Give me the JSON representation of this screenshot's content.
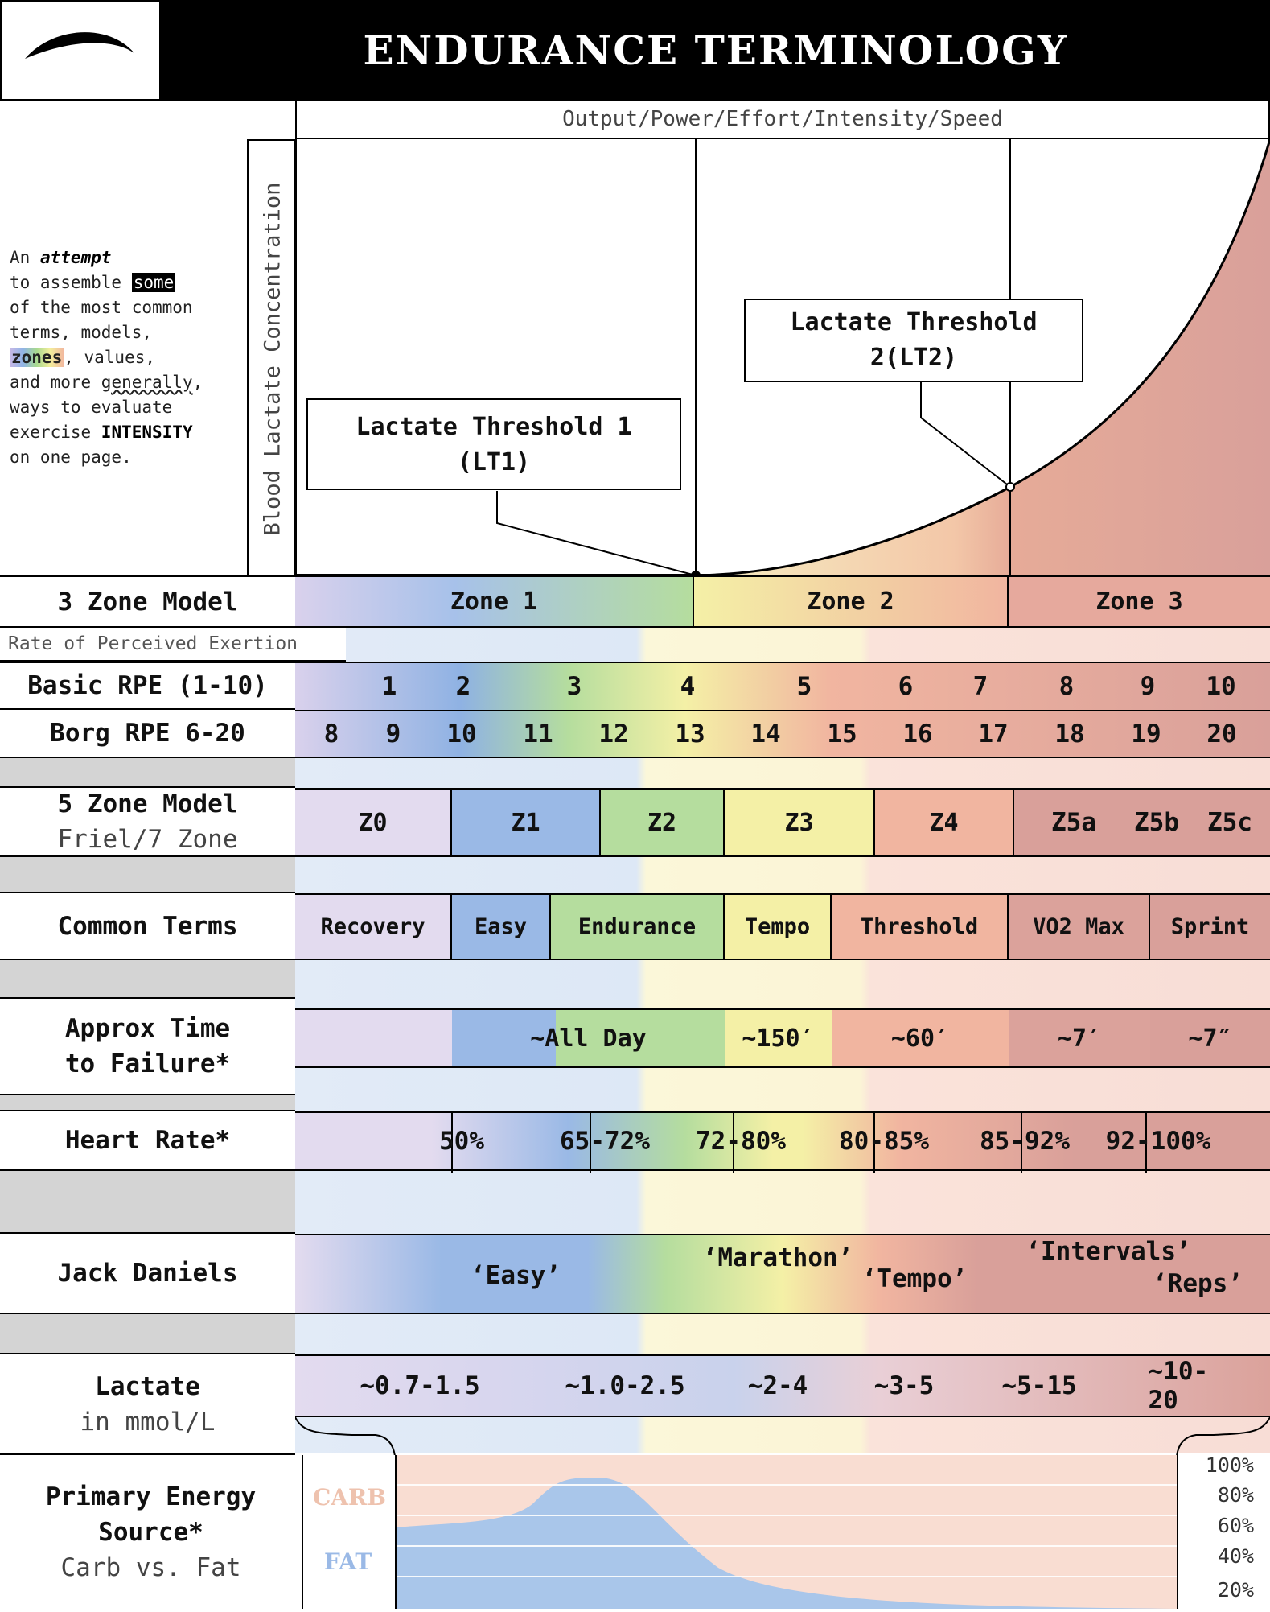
{
  "title": "ENDURANCE TERMINOLOGY",
  "top_axis": "Output/Power/Effort/Intensity/Speed",
  "side_axis": "Blood Lactate Concentration",
  "intro": {
    "l1a": "An ",
    "l1b": "attempt",
    "l2a": "to assemble ",
    "l2b": "some",
    "l3": "of the most common",
    "l4": "terms, models,",
    "l5a": "zones",
    "l5b": ", values,",
    "l6a": "and more ",
    "l6b": "generally",
    "l6c": ",",
    "l7": "ways to evaluate",
    "l8a": "exercise ",
    "l8b": "INTENSITY",
    "l9": "on one page."
  },
  "callouts": {
    "lt1_a": "Lactate Threshold 1",
    "lt1_b": "(LT1)",
    "lt2_a": "Lactate Threshold",
    "lt2_b": "2(LT2)"
  },
  "rows": {
    "three_zone": "3 Zone Model",
    "rpe_heading": "Rate of Perceived Exertion",
    "basic_rpe": "Basic RPE (1-10)",
    "borg": "Borg RPE 6-20",
    "five_zone_a": "5 Zone Model",
    "five_zone_b": "Friel/7 Zone",
    "common": "Common Terms",
    "ttf_a": "Approx Time",
    "ttf_b": "to Failure*",
    "hr": "Heart Rate*",
    "daniels": "Jack Daniels",
    "lactate_a": "Lactate",
    "lactate_b": "in mmol/L",
    "energy_a": "Primary Energy",
    "energy_b": "Source*",
    "energy_c": "Carb vs. Fat"
  },
  "three_zone": [
    "Zone 1",
    "Zone 2",
    "Zone 3"
  ],
  "basic_rpe": [
    "1",
    "2",
    "3",
    "4",
    "5",
    "6",
    "7",
    "8",
    "9",
    "10"
  ],
  "borg_rpe": [
    "8",
    "9",
    "10",
    "11",
    "12",
    "13",
    "14",
    "15",
    "16",
    "17",
    "18",
    "19",
    "20"
  ],
  "five_zone": [
    "Z0",
    "Z1",
    "Z2",
    "Z3",
    "Z4",
    "Z5a",
    "Z5b",
    "Z5c"
  ],
  "common_terms": [
    "Recovery",
    "Easy",
    "Endurance",
    "Tempo",
    "Threshold",
    "VO2 Max",
    "Sprint"
  ],
  "time_to_failure": [
    "~All Day",
    "~150′",
    "~60′",
    "~7′",
    "~7″"
  ],
  "heart_rate": [
    "50%",
    "65-72%",
    "72-80%",
    "80-85%",
    "85-92%",
    "92-100%"
  ],
  "jack_daniels": [
    "‘Easy’",
    "‘Marathon’",
    "‘Tempo’",
    "‘Intervals’",
    "‘Reps’"
  ],
  "lactate": [
    "~0.7-1.5",
    "~1.0-2.5",
    "~2-4",
    "~3-5",
    "~5-15",
    "~10-20"
  ],
  "energy": {
    "carb": "CARB",
    "fat": "FAT",
    "pcts": [
      "100%",
      "80%",
      "60%",
      "40%",
      "20%"
    ]
  },
  "colors": {
    "purple": "#d9d1ec",
    "blue": "#8fb2e3",
    "green": "#b5dd9e",
    "yellow": "#f4f0a6",
    "orange": "#f1b5a0",
    "red": "#d9a09a",
    "carb": "#f9ddd2",
    "fat": "#a9c6ea"
  }
}
